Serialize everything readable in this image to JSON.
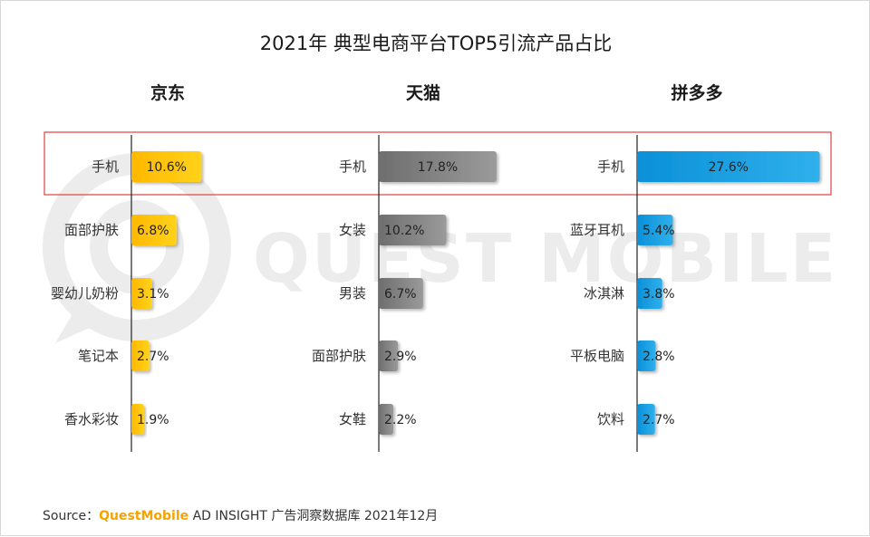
{
  "chart_data": {
    "type": "bar",
    "title": "2021年 典型电商平台TOP5引流产品占比",
    "unit": "%",
    "panels": [
      {
        "name": "京东",
        "color": "#ffc000",
        "categories": [
          "手机",
          "面部护肤",
          "婴幼儿奶粉",
          "笔记本",
          "香水彩妆"
        ],
        "values": [
          10.6,
          6.8,
          3.1,
          2.7,
          1.9
        ],
        "labels": [
          "10.6%",
          "6.8%",
          "3.1%",
          "2.7%",
          "1.9%"
        ]
      },
      {
        "name": "天猫",
        "color": "#808080",
        "categories": [
          "手机",
          "女装",
          "男装",
          "面部护肤",
          "女鞋"
        ],
        "values": [
          17.8,
          10.2,
          6.7,
          2.9,
          2.2
        ],
        "labels": [
          "17.8%",
          "10.2%",
          "6.7%",
          "2.9%",
          "2.2%"
        ]
      },
      {
        "name": "拼多多",
        "color": "#1ba1e2",
        "categories": [
          "手机",
          "蓝牙耳机",
          "冰淇淋",
          "平板电脑",
          "饮料"
        ],
        "values": [
          27.6,
          5.4,
          3.8,
          2.8,
          2.7
        ],
        "labels": [
          "27.6%",
          "5.4%",
          "3.8%",
          "2.8%",
          "2.7%"
        ]
      }
    ],
    "highlight_row": "手机",
    "highlight_color": "#e04040",
    "watermark": "QUEST MOBILE"
  },
  "source": {
    "prefix": "Source：",
    "brand": "QuestMobile",
    "rest": " AD INSIGHT 广告洞察数据库 2021年12月"
  }
}
